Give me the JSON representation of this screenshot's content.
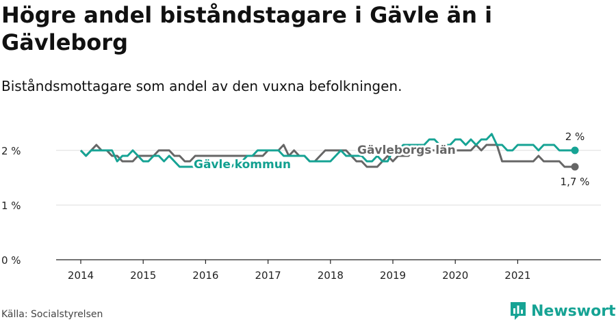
{
  "title": "Högre andel biståndstagare i Gävle än i Gävleborg",
  "subtitle": "Biståndsmottagare som andel av den vuxna befolkningen.",
  "source": "Källa: Socialstyrelsen",
  "brand": {
    "name": "Newsworthy",
    "logo_icon": "newsworthy-logo-icon",
    "color": "#16a394"
  },
  "chart_data": {
    "type": "line",
    "title": "Högre andel biståndstagare i Gävle än i Gävleborg",
    "subtitle": "Biståndsmottagare som andel av den vuxna befolkningen.",
    "x_ticks": [
      "2014",
      "2015",
      "2016",
      "2017",
      "2018",
      "2019",
      "2020",
      "2021"
    ],
    "y_ticks": [
      "0 %",
      "1 %",
      "2 %"
    ],
    "ylim": [
      0,
      2.6
    ],
    "grid": "horizontal",
    "x_start": "2014-01",
    "series": [
      {
        "name": "Gävleborgs län",
        "color": "#666666",
        "end_label": "1,7 %",
        "values": [
          2.0,
          1.9,
          2.0,
          2.1,
          2.0,
          2.0,
          1.9,
          1.9,
          1.8,
          1.8,
          1.8,
          1.9,
          1.9,
          1.9,
          1.9,
          2.0,
          2.0,
          2.0,
          1.9,
          1.9,
          1.8,
          1.8,
          1.9,
          1.9,
          1.9,
          1.9,
          1.9,
          1.9,
          1.9,
          1.9,
          1.9,
          1.9,
          1.9,
          1.9,
          1.9,
          1.9,
          2.0,
          2.0,
          2.0,
          2.1,
          1.9,
          2.0,
          1.9,
          1.9,
          1.8,
          1.8,
          1.9,
          2.0,
          2.0,
          2.0,
          2.0,
          2.0,
          1.9,
          1.8,
          1.8,
          1.7,
          1.7,
          1.7,
          1.8,
          1.9,
          1.8,
          1.9,
          1.9,
          1.9,
          2.0,
          2.0,
          2.0,
          2.0,
          2.0,
          2.0,
          2.0,
          2.0,
          2.0,
          2.0,
          2.0,
          2.0,
          2.1,
          2.0,
          2.1,
          2.1,
          2.1,
          1.8,
          1.8,
          1.8,
          1.8,
          1.8,
          1.8,
          1.8,
          1.9,
          1.8,
          1.8,
          1.8,
          1.8,
          1.7,
          1.7,
          1.7
        ]
      },
      {
        "name": "Gävle kommun",
        "color": "#16a394",
        "end_label": "2 %",
        "values": [
          2.0,
          1.9,
          2.0,
          2.0,
          2.0,
          2.0,
          2.0,
          1.8,
          1.9,
          1.9,
          2.0,
          1.9,
          1.8,
          1.8,
          1.9,
          1.9,
          1.8,
          1.9,
          1.8,
          1.7,
          1.7,
          1.7,
          1.7,
          1.7,
          1.7,
          1.7,
          1.7,
          1.7,
          1.7,
          1.7,
          1.8,
          1.8,
          1.9,
          1.9,
          2.0,
          2.0,
          2.0,
          2.0,
          2.0,
          1.9,
          1.9,
          1.9,
          1.9,
          1.9,
          1.8,
          1.8,
          1.8,
          1.8,
          1.8,
          1.9,
          2.0,
          1.9,
          1.9,
          1.9,
          1.9,
          1.8,
          1.8,
          1.9,
          1.8,
          1.8,
          2.0,
          2.0,
          2.1,
          2.1,
          2.1,
          2.1,
          2.1,
          2.2,
          2.2,
          2.1,
          2.1,
          2.1,
          2.2,
          2.2,
          2.1,
          2.2,
          2.1,
          2.2,
          2.2,
          2.3,
          2.1,
          2.1,
          2.0,
          2.0,
          2.1,
          2.1,
          2.1,
          2.1,
          2.0,
          2.1,
          2.1,
          2.1,
          2.0,
          2.0,
          2.0,
          2.0
        ]
      }
    ]
  }
}
